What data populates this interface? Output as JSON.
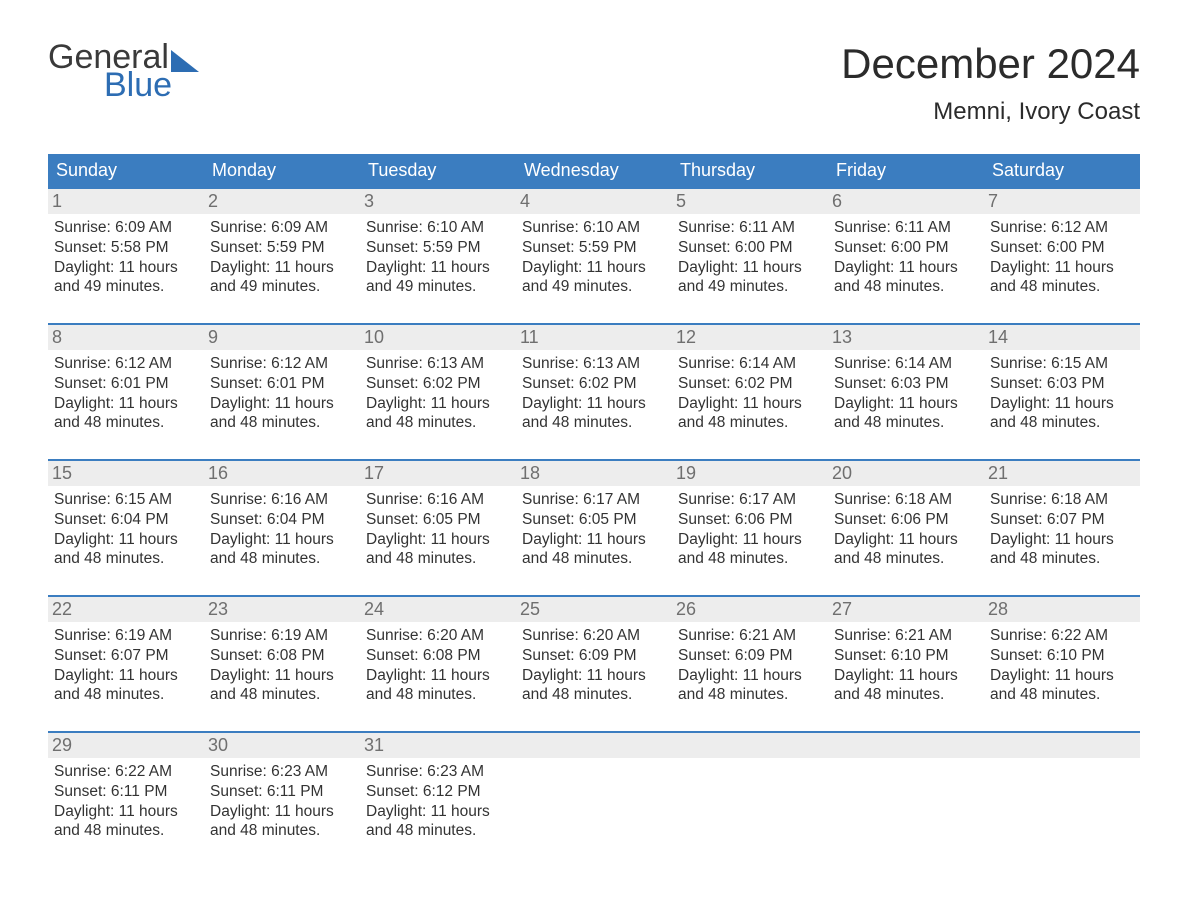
{
  "logo": {
    "text_general": "General",
    "text_blue": "Blue",
    "brand_color": "#2d6db3"
  },
  "title": {
    "month": "December 2024",
    "location": "Memni, Ivory Coast"
  },
  "colors": {
    "header_bg": "#3b7dc0",
    "header_text": "#ffffff",
    "week_border": "#3b7dc0",
    "daynum_bg": "#ededed",
    "daynum_text": "#6f6f6f",
    "body_text": "#333333",
    "page_bg": "#ffffff"
  },
  "fonts": {
    "title_size_pt": 42,
    "location_size_pt": 24,
    "dow_size_pt": 18,
    "daynum_size_pt": 18,
    "body_size_pt": 15.5,
    "family": "Arial"
  },
  "days_of_week": [
    "Sunday",
    "Monday",
    "Tuesday",
    "Wednesday",
    "Thursday",
    "Friday",
    "Saturday"
  ],
  "weeks": [
    [
      {
        "num": "1",
        "sunrise": "Sunrise: 6:09 AM",
        "sunset": "Sunset: 5:58 PM",
        "daylight1": "Daylight: 11 hours",
        "daylight2": "and 49 minutes."
      },
      {
        "num": "2",
        "sunrise": "Sunrise: 6:09 AM",
        "sunset": "Sunset: 5:59 PM",
        "daylight1": "Daylight: 11 hours",
        "daylight2": "and 49 minutes."
      },
      {
        "num": "3",
        "sunrise": "Sunrise: 6:10 AM",
        "sunset": "Sunset: 5:59 PM",
        "daylight1": "Daylight: 11 hours",
        "daylight2": "and 49 minutes."
      },
      {
        "num": "4",
        "sunrise": "Sunrise: 6:10 AM",
        "sunset": "Sunset: 5:59 PM",
        "daylight1": "Daylight: 11 hours",
        "daylight2": "and 49 minutes."
      },
      {
        "num": "5",
        "sunrise": "Sunrise: 6:11 AM",
        "sunset": "Sunset: 6:00 PM",
        "daylight1": "Daylight: 11 hours",
        "daylight2": "and 49 minutes."
      },
      {
        "num": "6",
        "sunrise": "Sunrise: 6:11 AM",
        "sunset": "Sunset: 6:00 PM",
        "daylight1": "Daylight: 11 hours",
        "daylight2": "and 48 minutes."
      },
      {
        "num": "7",
        "sunrise": "Sunrise: 6:12 AM",
        "sunset": "Sunset: 6:00 PM",
        "daylight1": "Daylight: 11 hours",
        "daylight2": "and 48 minutes."
      }
    ],
    [
      {
        "num": "8",
        "sunrise": "Sunrise: 6:12 AM",
        "sunset": "Sunset: 6:01 PM",
        "daylight1": "Daylight: 11 hours",
        "daylight2": "and 48 minutes."
      },
      {
        "num": "9",
        "sunrise": "Sunrise: 6:12 AM",
        "sunset": "Sunset: 6:01 PM",
        "daylight1": "Daylight: 11 hours",
        "daylight2": "and 48 minutes."
      },
      {
        "num": "10",
        "sunrise": "Sunrise: 6:13 AM",
        "sunset": "Sunset: 6:02 PM",
        "daylight1": "Daylight: 11 hours",
        "daylight2": "and 48 minutes."
      },
      {
        "num": "11",
        "sunrise": "Sunrise: 6:13 AM",
        "sunset": "Sunset: 6:02 PM",
        "daylight1": "Daylight: 11 hours",
        "daylight2": "and 48 minutes."
      },
      {
        "num": "12",
        "sunrise": "Sunrise: 6:14 AM",
        "sunset": "Sunset: 6:02 PM",
        "daylight1": "Daylight: 11 hours",
        "daylight2": "and 48 minutes."
      },
      {
        "num": "13",
        "sunrise": "Sunrise: 6:14 AM",
        "sunset": "Sunset: 6:03 PM",
        "daylight1": "Daylight: 11 hours",
        "daylight2": "and 48 minutes."
      },
      {
        "num": "14",
        "sunrise": "Sunrise: 6:15 AM",
        "sunset": "Sunset: 6:03 PM",
        "daylight1": "Daylight: 11 hours",
        "daylight2": "and 48 minutes."
      }
    ],
    [
      {
        "num": "15",
        "sunrise": "Sunrise: 6:15 AM",
        "sunset": "Sunset: 6:04 PM",
        "daylight1": "Daylight: 11 hours",
        "daylight2": "and 48 minutes."
      },
      {
        "num": "16",
        "sunrise": "Sunrise: 6:16 AM",
        "sunset": "Sunset: 6:04 PM",
        "daylight1": "Daylight: 11 hours",
        "daylight2": "and 48 minutes."
      },
      {
        "num": "17",
        "sunrise": "Sunrise: 6:16 AM",
        "sunset": "Sunset: 6:05 PM",
        "daylight1": "Daylight: 11 hours",
        "daylight2": "and 48 minutes."
      },
      {
        "num": "18",
        "sunrise": "Sunrise: 6:17 AM",
        "sunset": "Sunset: 6:05 PM",
        "daylight1": "Daylight: 11 hours",
        "daylight2": "and 48 minutes."
      },
      {
        "num": "19",
        "sunrise": "Sunrise: 6:17 AM",
        "sunset": "Sunset: 6:06 PM",
        "daylight1": "Daylight: 11 hours",
        "daylight2": "and 48 minutes."
      },
      {
        "num": "20",
        "sunrise": "Sunrise: 6:18 AM",
        "sunset": "Sunset: 6:06 PM",
        "daylight1": "Daylight: 11 hours",
        "daylight2": "and 48 minutes."
      },
      {
        "num": "21",
        "sunrise": "Sunrise: 6:18 AM",
        "sunset": "Sunset: 6:07 PM",
        "daylight1": "Daylight: 11 hours",
        "daylight2": "and 48 minutes."
      }
    ],
    [
      {
        "num": "22",
        "sunrise": "Sunrise: 6:19 AM",
        "sunset": "Sunset: 6:07 PM",
        "daylight1": "Daylight: 11 hours",
        "daylight2": "and 48 minutes."
      },
      {
        "num": "23",
        "sunrise": "Sunrise: 6:19 AM",
        "sunset": "Sunset: 6:08 PM",
        "daylight1": "Daylight: 11 hours",
        "daylight2": "and 48 minutes."
      },
      {
        "num": "24",
        "sunrise": "Sunrise: 6:20 AM",
        "sunset": "Sunset: 6:08 PM",
        "daylight1": "Daylight: 11 hours",
        "daylight2": "and 48 minutes."
      },
      {
        "num": "25",
        "sunrise": "Sunrise: 6:20 AM",
        "sunset": "Sunset: 6:09 PM",
        "daylight1": "Daylight: 11 hours",
        "daylight2": "and 48 minutes."
      },
      {
        "num": "26",
        "sunrise": "Sunrise: 6:21 AM",
        "sunset": "Sunset: 6:09 PM",
        "daylight1": "Daylight: 11 hours",
        "daylight2": "and 48 minutes."
      },
      {
        "num": "27",
        "sunrise": "Sunrise: 6:21 AM",
        "sunset": "Sunset: 6:10 PM",
        "daylight1": "Daylight: 11 hours",
        "daylight2": "and 48 minutes."
      },
      {
        "num": "28",
        "sunrise": "Sunrise: 6:22 AM",
        "sunset": "Sunset: 6:10 PM",
        "daylight1": "Daylight: 11 hours",
        "daylight2": "and 48 minutes."
      }
    ],
    [
      {
        "num": "29",
        "sunrise": "Sunrise: 6:22 AM",
        "sunset": "Sunset: 6:11 PM",
        "daylight1": "Daylight: 11 hours",
        "daylight2": "and 48 minutes."
      },
      {
        "num": "30",
        "sunrise": "Sunrise: 6:23 AM",
        "sunset": "Sunset: 6:11 PM",
        "daylight1": "Daylight: 11 hours",
        "daylight2": "and 48 minutes."
      },
      {
        "num": "31",
        "sunrise": "Sunrise: 6:23 AM",
        "sunset": "Sunset: 6:12 PM",
        "daylight1": "Daylight: 11 hours",
        "daylight2": "and 48 minutes."
      },
      {
        "empty": true
      },
      {
        "empty": true
      },
      {
        "empty": true
      },
      {
        "empty": true
      }
    ]
  ]
}
